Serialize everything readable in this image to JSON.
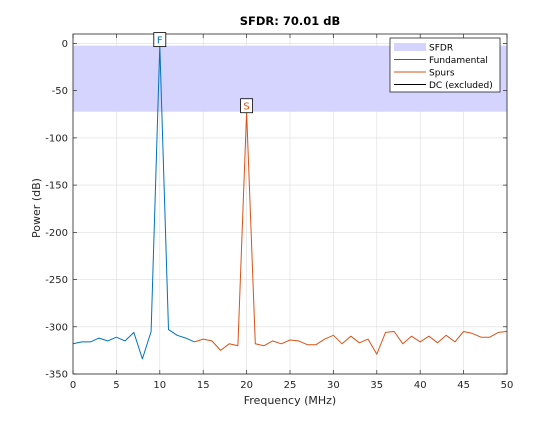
{
  "chart_data": {
    "type": "line",
    "title": "SFDR:  70.01 dB",
    "xlabel": "Frequency (MHz)",
    "ylabel": "Power (dB)",
    "xlim": [
      0,
      50
    ],
    "ylim": [
      -350,
      10
    ],
    "xticks": [
      0,
      5,
      10,
      15,
      20,
      25,
      30,
      35,
      40,
      45,
      50
    ],
    "yticks": [
      0,
      -50,
      -100,
      -150,
      -200,
      -250,
      -300,
      -350
    ],
    "grid": true,
    "legend_position": "top-right",
    "sfdr_band": {
      "name": "SFDR",
      "y_top": -2.3,
      "y_bottom": -72.3,
      "color": "#d4d4ff"
    },
    "markers": [
      {
        "label": "F",
        "x": 10,
        "y": -2.3
      },
      {
        "label": "S",
        "x": 20,
        "y": -72.3
      }
    ],
    "series": [
      {
        "name": "Fundamental",
        "color": "#0072bd",
        "x": [
          0,
          1,
          2,
          3,
          4,
          5,
          6,
          7,
          8,
          9,
          10,
          11,
          12,
          13,
          14
        ],
        "y": [
          -318,
          -316,
          -316,
          -312,
          -315,
          -311,
          -315,
          -306,
          -334,
          -305,
          -2.3,
          -303,
          -309,
          -312,
          -316
        ]
      },
      {
        "name": "Spurs",
        "color": "#d95319",
        "x": [
          14,
          15,
          16,
          17,
          18,
          19,
          20,
          21,
          22,
          23,
          24,
          25,
          26,
          27,
          28,
          29,
          30,
          31,
          32,
          33,
          34,
          35,
          36,
          37,
          38,
          39,
          40,
          41,
          42,
          43,
          44,
          45,
          46,
          47,
          48,
          49,
          50
        ],
        "y": [
          -316,
          -313,
          -315,
          -325,
          -318,
          -320,
          -72.3,
          -318,
          -320,
          -315,
          -318,
          -314,
          -315,
          -319,
          -319,
          -313,
          -309,
          -318,
          -310,
          -317,
          -313,
          -329,
          -306,
          -305,
          -318,
          -310,
          -316,
          -310,
          -317,
          -309,
          -316,
          -305,
          -307,
          -311,
          -311,
          -306,
          -305
        ]
      },
      {
        "name": "DC (excluded)",
        "color": "#000000",
        "x": [
          0
        ],
        "y": [
          -318
        ]
      }
    ]
  }
}
